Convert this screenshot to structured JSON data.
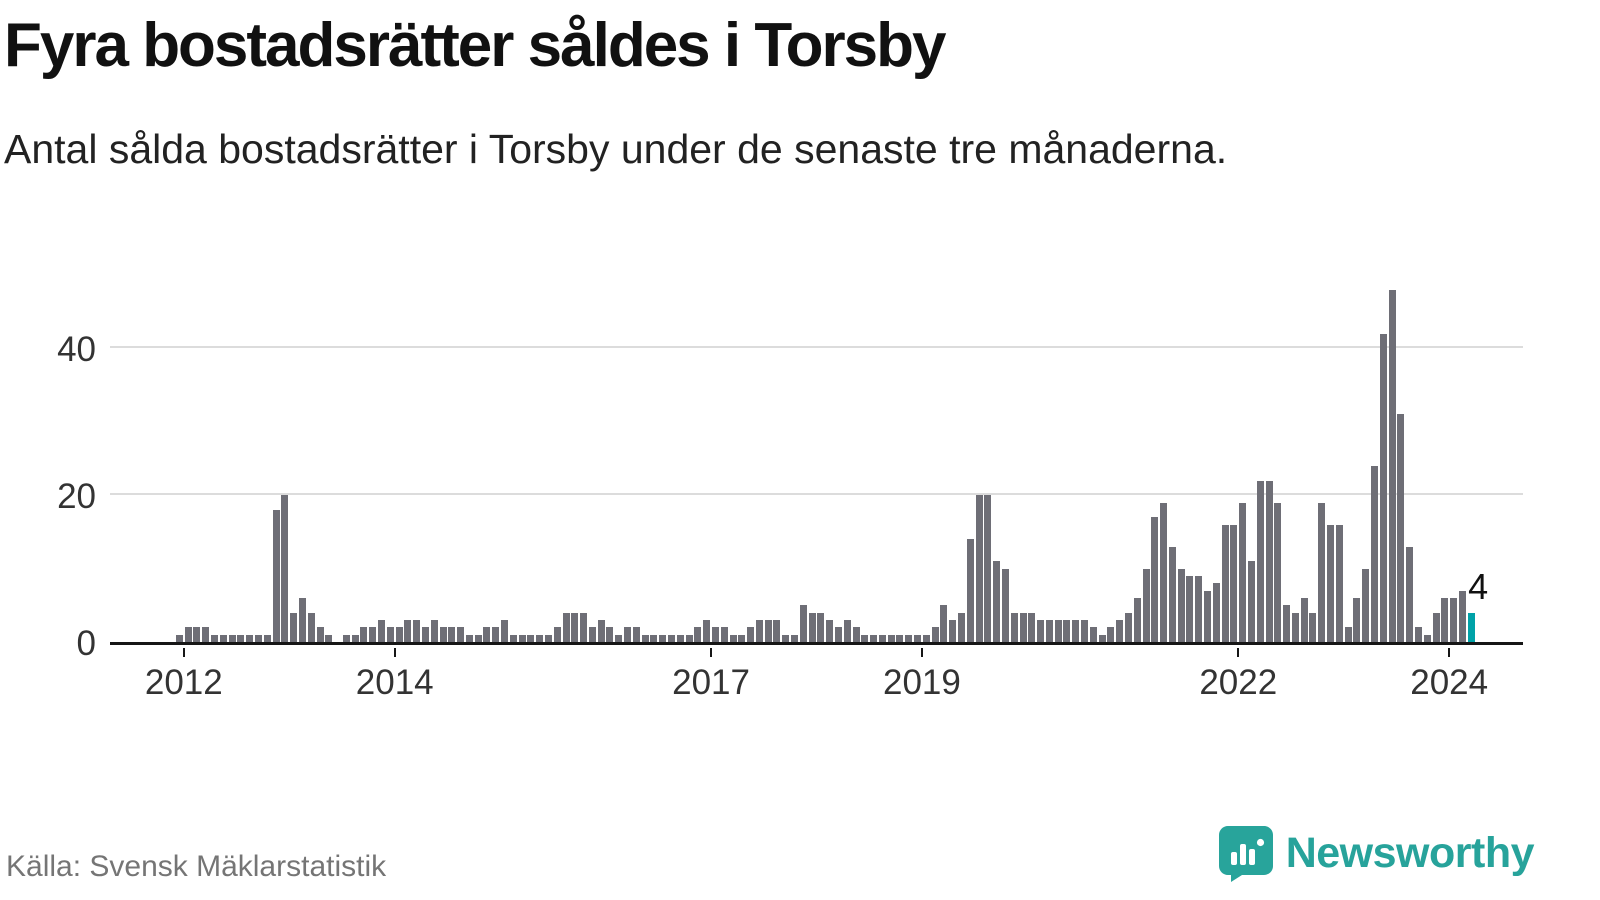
{
  "header": {
    "title": "Fyra bostadsrätter såldes i Torsby",
    "subtitle": "Antal sålda bostadsrätter i Torsby under de senaste tre månaderna."
  },
  "chart_data": {
    "type": "bar",
    "title": "Fyra bostadsrätter såldes i Torsby",
    "subtitle": "Antal sålda bostadsrätter i Torsby under de senaste tre månaderna.",
    "source": "Källa: Svensk Mäklarstatistik",
    "frequency": "monthly",
    "start_month": "2011-12",
    "values": [
      1,
      2,
      2,
      2,
      1,
      1,
      1,
      1,
      1,
      1,
      1,
      18,
      20,
      4,
      6,
      4,
      2,
      1,
      0,
      1,
      1,
      2,
      2,
      3,
      2,
      2,
      3,
      3,
      2,
      3,
      2,
      2,
      2,
      1,
      1,
      2,
      2,
      3,
      1,
      1,
      1,
      1,
      1,
      2,
      4,
      4,
      4,
      2,
      3,
      2,
      1,
      2,
      2,
      1,
      1,
      1,
      1,
      1,
      1,
      2,
      3,
      2,
      2,
      1,
      1,
      2,
      3,
      3,
      3,
      1,
      1,
      5,
      4,
      4,
      3,
      2,
      3,
      2,
      1,
      1,
      1,
      1,
      1,
      1,
      1,
      1,
      2,
      5,
      3,
      4,
      14,
      20,
      20,
      11,
      10,
      4,
      4,
      4,
      3,
      3,
      3,
      3,
      3,
      3,
      2,
      1,
      2,
      3,
      4,
      6,
      10,
      17,
      19,
      13,
      10,
      9,
      9,
      7,
      8,
      16,
      16,
      19,
      11,
      22,
      22,
      19,
      5,
      4,
      6,
      4,
      19,
      16,
      16,
      2,
      6,
      10,
      24,
      42,
      48,
      31,
      13,
      2,
      1,
      4,
      6,
      6,
      7,
      4
    ],
    "highlight_index": 147,
    "highlight_label": "4",
    "ylim": [
      0,
      50
    ],
    "yticks": [
      0,
      20,
      40
    ],
    "xticks": [
      2012,
      2014,
      2017,
      2019,
      2022,
      2024
    ],
    "x_domain": [
      2011.3,
      2024.7
    ],
    "grid": "horizontal",
    "legend": "none",
    "bar_color": "#6e6e76",
    "highlight_color": "#00a2a8",
    "axis_color": "#161616",
    "gridline_color": "#dcdcdc"
  },
  "footer": {
    "source": "Källa: Svensk Mäklarstatistik"
  },
  "brand": {
    "name": "Newsworthy",
    "color": "#27a39b",
    "icon": "newsworthy-chart-bubble-icon"
  }
}
